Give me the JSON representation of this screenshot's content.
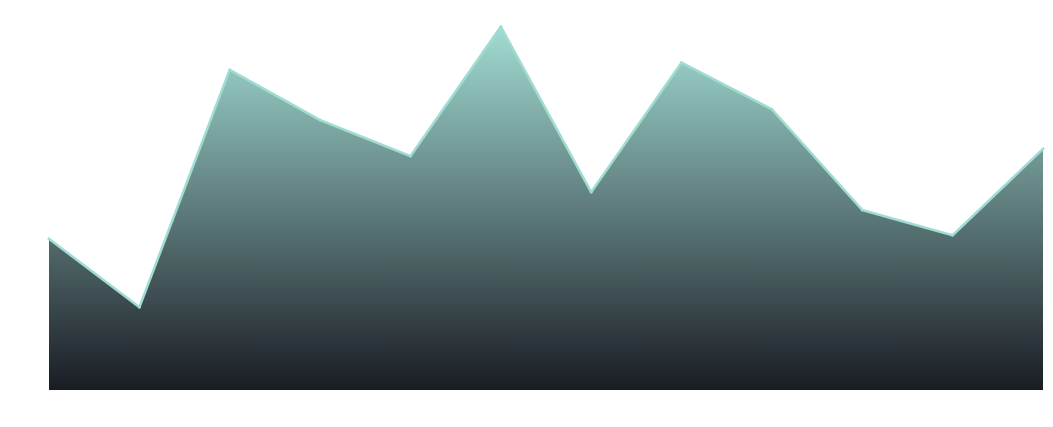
{
  "chart_data": {
    "type": "area",
    "title": "",
    "xlabel": "",
    "ylabel": "",
    "x": [
      1,
      2,
      3,
      4,
      5,
      6,
      7,
      8,
      9,
      10,
      11,
      12
    ],
    "series": [
      {
        "values": [
          42,
          23,
          89,
          75,
          65,
          101,
          55,
          91,
          78,
          50,
          43,
          67
        ]
      }
    ],
    "ylim": [
      0,
      107
    ],
    "grid": false,
    "legend": "none",
    "colors": {
      "line": "#9fdcd2",
      "fill_top": "#a2dcd3",
      "fill_bottom": "#1a1c24"
    }
  }
}
